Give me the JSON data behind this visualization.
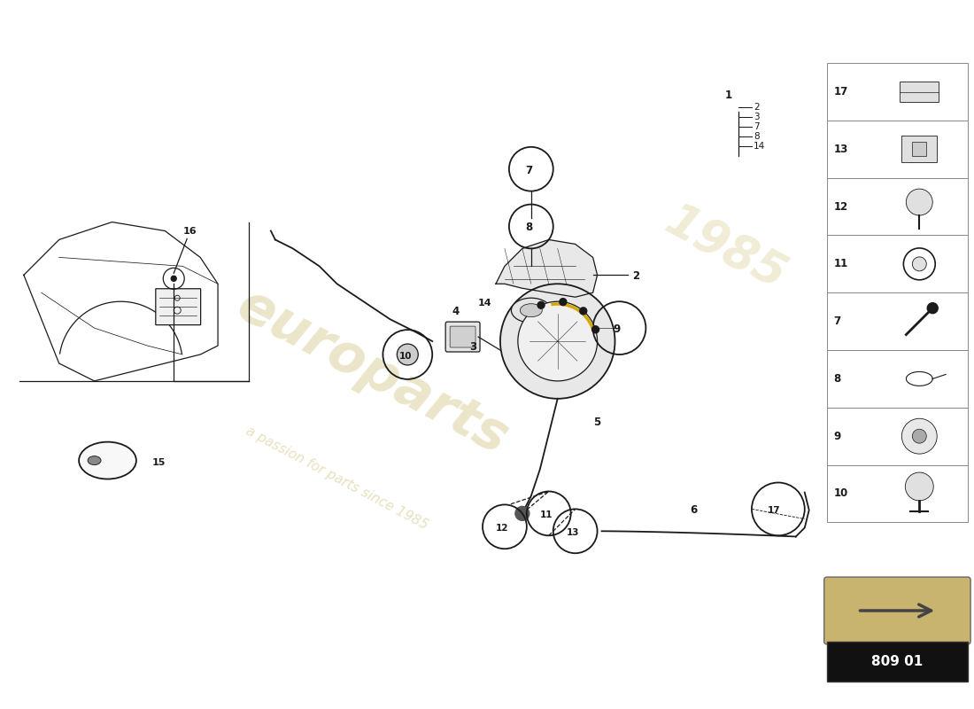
{
  "bg_color": "#ffffff",
  "line_color": "#1a1a1a",
  "wm_color1": "#d4c88a",
  "wm_color2": "#c8b870",
  "diagram_code": "809 01",
  "sidebar_nums": [
    17,
    13,
    12,
    11,
    7,
    8,
    9,
    10
  ],
  "part_list_nums": [
    "2",
    "3",
    "7",
    "8",
    "14"
  ],
  "part_list_label": "1"
}
